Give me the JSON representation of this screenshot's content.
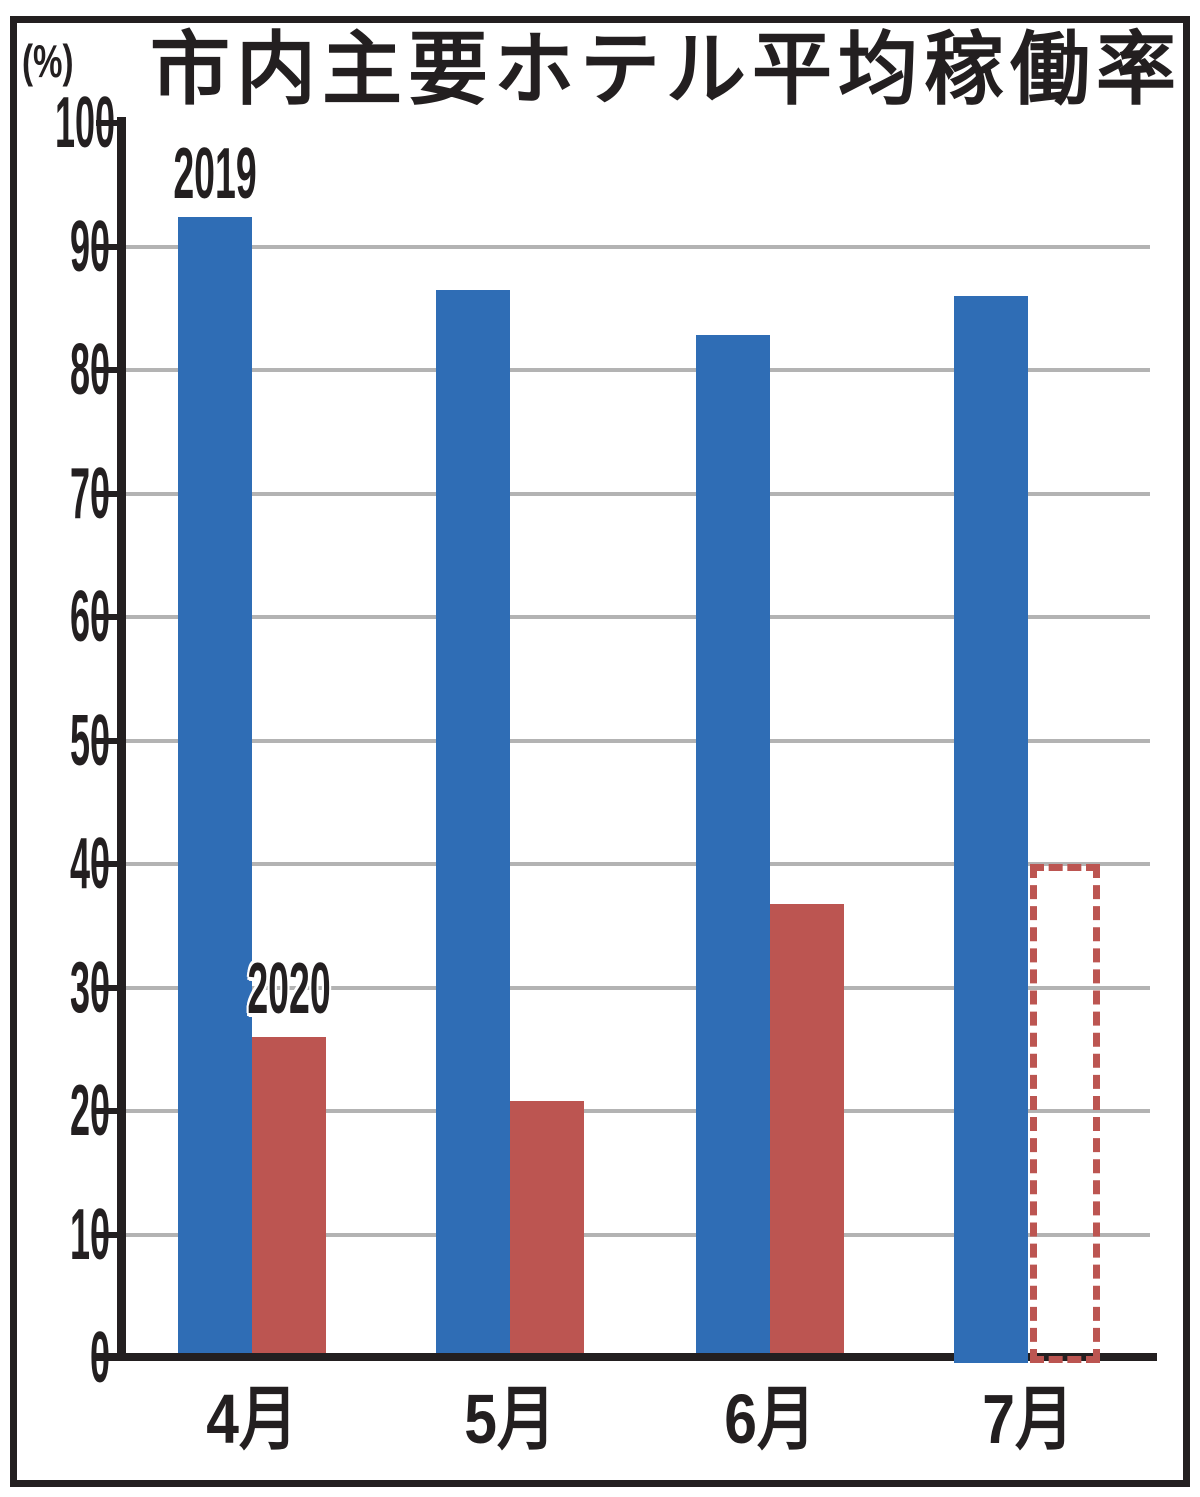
{
  "chart_data": {
    "type": "bar",
    "title": "市内主要ホテル平均稼働率",
    "unit_label": "(%)",
    "categories": [
      "4月",
      "5月",
      "6月",
      "7月"
    ],
    "series": [
      {
        "name": "2019",
        "color": "#2F6DB5",
        "values": [
          92.4,
          86.5,
          82.8,
          86.0
        ]
      },
      {
        "name": "2020",
        "color": "#BC5551",
        "values": [
          26.0,
          20.8,
          36.8,
          40.0
        ],
        "dashed_outline_indices": [
          3
        ]
      }
    ],
    "ylim": [
      0,
      100
    ],
    "yticks": [
      0,
      10,
      20,
      30,
      40,
      50,
      60,
      70,
      80,
      90,
      100
    ],
    "grid": true,
    "gridline_color": "#B3B3B3",
    "axis_color": "#231F20",
    "legend_position": "series labels drawn in-plot above the first bar group",
    "annotation": "7月 2020 bar is a dashed outline (projected value, ~40%)"
  }
}
